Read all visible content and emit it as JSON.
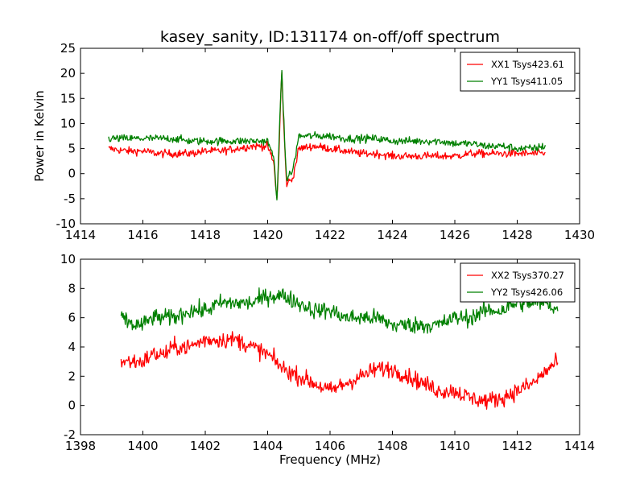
{
  "chart_data": [
    {
      "type": "line",
      "title": "kasey_sanity, ID:131174 on-off/off spectrum",
      "xlabel": "",
      "ylabel": "Power in Kelvin",
      "xlim": [
        1414,
        1430
      ],
      "ylim": [
        -10,
        25
      ],
      "xticks": [
        1414,
        1416,
        1418,
        1420,
        1422,
        1424,
        1426,
        1428,
        1430
      ],
      "yticks": [
        -10,
        -5,
        0,
        5,
        10,
        15,
        20,
        25
      ],
      "grid": false,
      "legend_position": "top-right",
      "series": [
        {
          "name": "XX1 Tsys423.61",
          "color": "#ff0000",
          "x": [
            1414.9,
            1415.5,
            1416.0,
            1416.5,
            1417.0,
            1417.5,
            1418.0,
            1418.5,
            1419.0,
            1419.5,
            1420.0,
            1420.2,
            1420.3,
            1420.35,
            1420.45,
            1420.5,
            1420.6,
            1420.8,
            1421.0,
            1421.5,
            1422.0,
            1422.5,
            1423.0,
            1423.5,
            1424.0,
            1424.5,
            1425.0,
            1425.5,
            1426.0,
            1426.5,
            1427.0,
            1427.5,
            1428.0,
            1428.5,
            1428.9
          ],
          "y": [
            5.0,
            4.5,
            4.5,
            4.0,
            4.0,
            4.0,
            4.5,
            4.5,
            5.0,
            5.5,
            5.5,
            2.0,
            -5.5,
            2.0,
            21.0,
            12.0,
            -2.0,
            -1.0,
            5.0,
            5.5,
            5.0,
            4.5,
            4.0,
            4.0,
            3.5,
            3.5,
            3.5,
            3.5,
            3.5,
            4.0,
            4.0,
            4.0,
            4.0,
            4.0,
            4.0
          ]
        },
        {
          "name": "YY1 Tsys411.05",
          "color": "#008000",
          "x": [
            1414.9,
            1415.5,
            1416.0,
            1416.5,
            1417.0,
            1417.5,
            1418.0,
            1418.5,
            1419.0,
            1419.5,
            1420.0,
            1420.2,
            1420.3,
            1420.35,
            1420.45,
            1420.5,
            1420.6,
            1420.8,
            1421.0,
            1421.5,
            1422.0,
            1422.5,
            1423.0,
            1423.5,
            1424.0,
            1424.5,
            1425.0,
            1425.5,
            1426.0,
            1426.5,
            1427.0,
            1427.5,
            1428.0,
            1428.5,
            1428.9
          ],
          "y": [
            7.0,
            7.0,
            7.0,
            7.0,
            7.0,
            6.5,
            6.5,
            6.5,
            6.5,
            6.5,
            6.5,
            3.0,
            -5.0,
            3.0,
            21.5,
            13.0,
            -1.0,
            0.5,
            7.5,
            7.5,
            7.5,
            7.0,
            7.0,
            7.0,
            6.5,
            6.5,
            6.5,
            6.5,
            6.0,
            6.0,
            5.5,
            5.5,
            5.0,
            5.0,
            5.5
          ]
        }
      ]
    },
    {
      "type": "line",
      "title": "",
      "xlabel": "Frequency (MHz)",
      "ylabel": "",
      "xlim": [
        1398,
        1414
      ],
      "ylim": [
        -2,
        10
      ],
      "xticks": [
        1398,
        1400,
        1402,
        1404,
        1406,
        1408,
        1410,
        1412,
        1414
      ],
      "yticks": [
        -2,
        0,
        2,
        4,
        6,
        8,
        10
      ],
      "grid": false,
      "legend_position": "top-right",
      "series": [
        {
          "name": "XX2 Tsys370.27",
          "color": "#ff0000",
          "x": [
            1399.3,
            1399.7,
            1400.0,
            1400.3,
            1400.7,
            1401.0,
            1401.5,
            1402.0,
            1402.5,
            1403.0,
            1403.5,
            1404.0,
            1404.5,
            1405.0,
            1405.5,
            1406.0,
            1406.5,
            1407.0,
            1407.5,
            1408.0,
            1408.5,
            1409.0,
            1409.5,
            1410.0,
            1410.5,
            1411.0,
            1411.5,
            1412.0,
            1412.5,
            1413.0,
            1413.3
          ],
          "y": [
            3.0,
            3.0,
            3.0,
            3.5,
            3.5,
            4.0,
            4.0,
            4.5,
            4.5,
            4.5,
            4.0,
            3.5,
            2.5,
            2.0,
            1.5,
            1.0,
            1.5,
            2.0,
            2.5,
            2.5,
            2.0,
            1.5,
            1.0,
            1.0,
            0.5,
            0.3,
            0.5,
            1.0,
            1.5,
            2.5,
            3.0
          ]
        },
        {
          "name": "YY2 Tsys426.06",
          "color": "#008000",
          "x": [
            1399.3,
            1399.7,
            1400.0,
            1400.3,
            1400.7,
            1401.0,
            1401.5,
            1402.0,
            1402.5,
            1403.0,
            1403.5,
            1404.0,
            1404.5,
            1405.0,
            1405.5,
            1406.0,
            1406.5,
            1407.0,
            1407.5,
            1408.0,
            1408.5,
            1409.0,
            1409.5,
            1410.0,
            1410.5,
            1411.0,
            1411.5,
            1412.0,
            1412.5,
            1413.0,
            1413.3
          ],
          "y": [
            6.0,
            5.5,
            5.5,
            6.0,
            6.0,
            6.0,
            6.5,
            6.5,
            7.0,
            7.0,
            7.0,
            7.5,
            7.5,
            7.0,
            6.5,
            6.5,
            6.0,
            6.0,
            6.0,
            5.5,
            5.5,
            5.5,
            5.5,
            6.0,
            6.0,
            6.5,
            6.5,
            7.0,
            7.0,
            7.0,
            6.5
          ]
        }
      ]
    }
  ]
}
